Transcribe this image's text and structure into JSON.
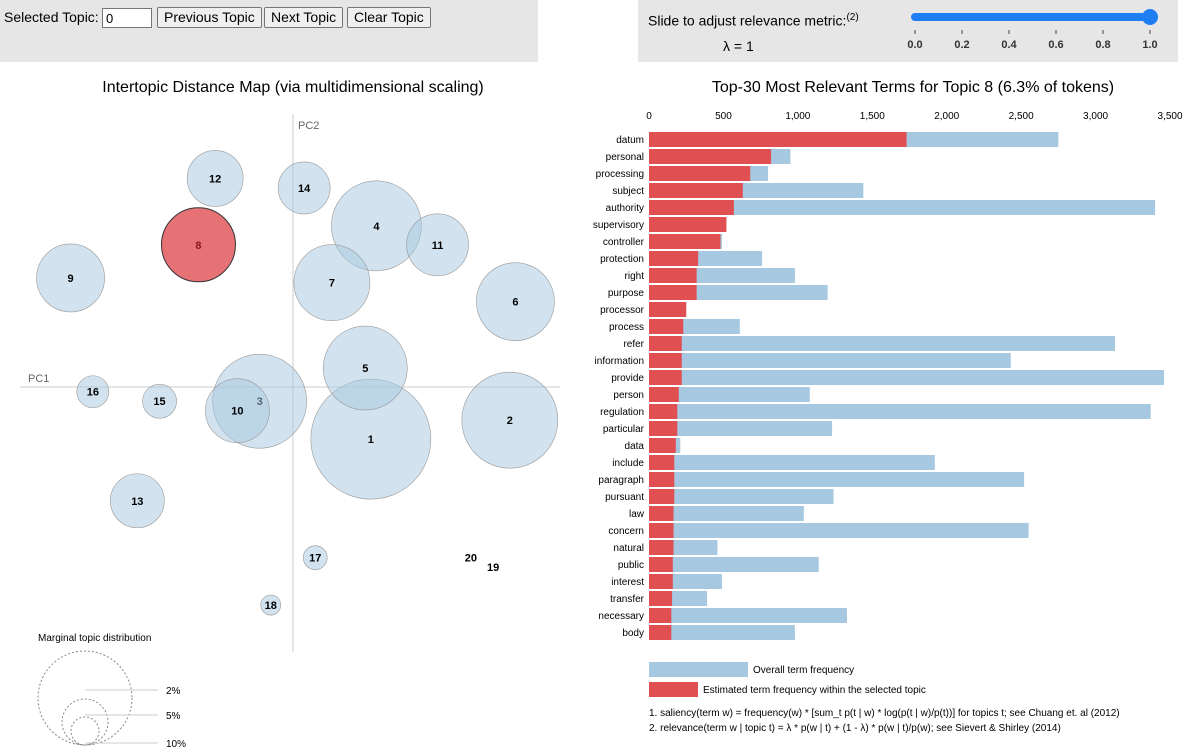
{
  "controls": {
    "selected_topic_label": "Selected Topic:",
    "selected_topic_value": "0",
    "prev_label": "Previous Topic",
    "next_label": "Next Topic",
    "clear_label": "Clear Topic",
    "slider_label": "Slide to adjust relevance metric:",
    "slider_footnote": "(2)",
    "lambda_text": "λ = 1",
    "lambda_value": 1,
    "slider_ticks": [
      "0.0",
      "0.2",
      "0.4",
      "0.6",
      "0.8",
      "1.0"
    ]
  },
  "chart_data": [
    {
      "type": "scatter",
      "title": "Intertopic Distance Map (via multidimensional scaling)",
      "xlabel": "PC1",
      "ylabel": "PC2",
      "selected_topic": "8",
      "colors": {
        "default": "#a6c8e0",
        "selected": "#e04f52"
      },
      "topics": [
        {
          "label": "1",
          "x": 0.14,
          "y": -0.11,
          "r": 60
        },
        {
          "label": "2",
          "x": 0.39,
          "y": -0.07,
          "r": 48
        },
        {
          "label": "3",
          "x": -0.06,
          "y": -0.03,
          "r": 47
        },
        {
          "label": "4",
          "x": 0.15,
          "y": 0.34,
          "r": 45
        },
        {
          "label": "5",
          "x": 0.13,
          "y": 0.04,
          "r": 42
        },
        {
          "label": "6",
          "x": 0.4,
          "y": 0.18,
          "r": 39
        },
        {
          "label": "7",
          "x": 0.07,
          "y": 0.22,
          "r": 38
        },
        {
          "label": "8",
          "x": -0.17,
          "y": 0.3,
          "r": 37
        },
        {
          "label": "9",
          "x": -0.4,
          "y": 0.23,
          "r": 34
        },
        {
          "label": "10",
          "x": -0.1,
          "y": -0.05,
          "r": 32
        },
        {
          "label": "11",
          "x": 0.26,
          "y": 0.3,
          "r": 31
        },
        {
          "label": "12",
          "x": -0.14,
          "y": 0.44,
          "r": 28
        },
        {
          "label": "13",
          "x": -0.28,
          "y": -0.24,
          "r": 27
        },
        {
          "label": "14",
          "x": 0.02,
          "y": 0.42,
          "r": 26
        },
        {
          "label": "15",
          "x": -0.24,
          "y": -0.03,
          "r": 17
        },
        {
          "label": "16",
          "x": -0.36,
          "y": -0.01,
          "r": 16
        },
        {
          "label": "17",
          "x": 0.04,
          "y": -0.36,
          "r": 12
        },
        {
          "label": "18",
          "x": -0.04,
          "y": -0.46,
          "r": 10
        },
        {
          "label": "19",
          "x": 0.36,
          "y": -0.38,
          "r": 0
        },
        {
          "label": "20",
          "x": 0.32,
          "y": -0.36,
          "r": 0
        }
      ],
      "legend": {
        "title": "Marginal topic distribution",
        "entries": [
          "2%",
          "5%",
          "10%"
        ]
      }
    },
    {
      "type": "bar",
      "orientation": "horizontal",
      "title": "Top-30 Most Relevant Terms for Topic 8 (6.3% of tokens)",
      "xlim": [
        0,
        3500
      ],
      "xticks": [
        "0",
        "500",
        "1,000",
        "1,500",
        "2,000",
        "2,500",
        "3,000",
        "3,500"
      ],
      "categories": [
        "datum",
        "personal",
        "processing",
        "subject",
        "authority",
        "supervisory",
        "controller",
        "protection",
        "right",
        "purpose",
        "processor",
        "process",
        "refer",
        "information",
        "provide",
        "person",
        "regulation",
        "particular",
        "data",
        "include",
        "paragraph",
        "pursuant",
        "law",
        "concern",
        "natural",
        "public",
        "interest",
        "transfer",
        "necessary",
        "body"
      ],
      "series": [
        {
          "name": "Overall term frequency",
          "color": "#a6c8e0",
          "values": [
            2750,
            950,
            800,
            1440,
            3400,
            520,
            490,
            760,
            980,
            1200,
            250,
            610,
            3130,
            2430,
            3460,
            1080,
            3370,
            1230,
            210,
            1920,
            2520,
            1240,
            1040,
            2550,
            460,
            1140,
            490,
            390,
            1330,
            980
          ]
        },
        {
          "name": "Estimated term frequency within the selected topic",
          "color": "#e04f52",
          "values": [
            1730,
            820,
            680,
            630,
            570,
            520,
            480,
            330,
            320,
            320,
            250,
            230,
            220,
            220,
            220,
            200,
            190,
            190,
            180,
            170,
            170,
            170,
            165,
            165,
            165,
            160,
            160,
            155,
            150,
            150
          ]
        }
      ]
    }
  ],
  "footnotes": [
    "1. saliency(term w) = frequency(w) * [sum_t p(t | w) * log(p(t | w)/p(t))] for topics t; see Chuang et. al (2012)",
    "2. relevance(term w | topic t) = λ * p(w | t) + (1 - λ) * p(w | t)/p(w); see Sievert & Shirley (2014)"
  ]
}
